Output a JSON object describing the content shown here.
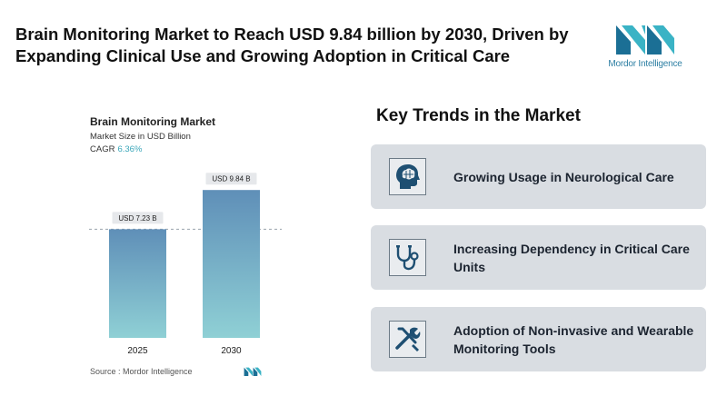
{
  "headline": "Brain Monitoring Market to Reach USD 9.84 billion by 2030, Driven by Expanding Clinical Use and Growing Adoption in Critical Care",
  "logo": {
    "text": "Mordor Intelligence"
  },
  "colors": {
    "accent": "#3aa6b9",
    "bar_top": "#5f8fb8",
    "bar_bottom": "#8fd0d5",
    "card_bg": "#d9dde2",
    "icon_dark": "#1e4f72"
  },
  "chart_data": {
    "type": "bar",
    "title": "Brain Monitoring Market",
    "subtitle": "Market Size in USD Billion",
    "cagr_label": "CAGR",
    "cagr_value": "6.36%",
    "categories": [
      "2025",
      "2030"
    ],
    "values": [
      7.23,
      9.84
    ],
    "data_labels": [
      "USD 7.23 B",
      "USD 9.84 B"
    ],
    "ylim": [
      0,
      11
    ],
    "grid": false,
    "reference_line": 7.23
  },
  "source": "Source :  Mordor Intelligence",
  "trends": {
    "title": "Key Trends in the Market",
    "items": [
      {
        "icon": "brain-head-icon",
        "label": "Growing Usage in Neurological Care"
      },
      {
        "icon": "stethoscope-icon",
        "label": "Increasing Dependency in Critical Care Units"
      },
      {
        "icon": "tools-icon",
        "label": "Adoption of Non-invasive and Wearable Monitoring Tools"
      }
    ]
  }
}
